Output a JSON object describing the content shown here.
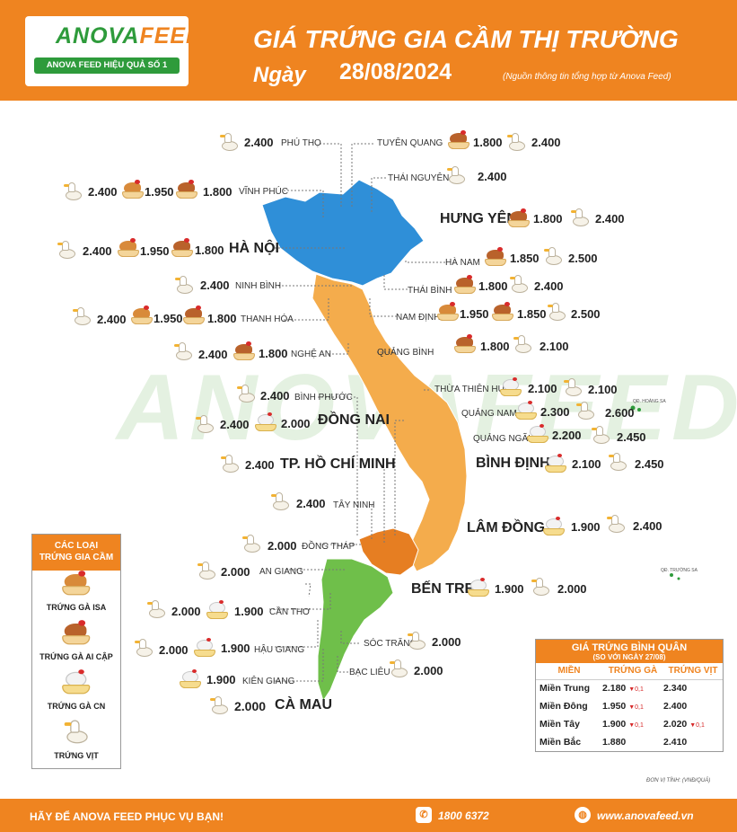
{
  "brand": {
    "logo_text_a": "ANOVA",
    "logo_text_b": "FEED",
    "logo_feed_small": "FEED",
    "ribbon": "ANOVA FEED HIỆU QUẢ SỐ 1"
  },
  "header": {
    "title": "GIÁ TRỨNG GIA CẦM THỊ TRƯỜNG",
    "date_label": "Ngày",
    "date": "28/08/2024",
    "source": "(Nguồn thông tin tổng hợp từ Anova Feed)"
  },
  "watermark": "ANOVAFEED",
  "islands": {
    "hoang_sa": "QĐ. HOÀNG SA",
    "truong_sa": "QĐ. TRƯỜNG SA"
  },
  "provinces": {
    "phu_tho": {
      "name": "PHÚ THỌ",
      "vit": "2.400"
    },
    "tuyen_quang": {
      "name": "TUYÊN QUANG",
      "ai_cap": "1.800",
      "vit": "2.400"
    },
    "thai_nguyen": {
      "name": "THÁI NGUYÊN",
      "vit": "2.400"
    },
    "vinh_phuc": {
      "name": "VĨNH PHÚC",
      "vit": "2.400",
      "isa": "1.950",
      "ai_cap": "1.800"
    },
    "hung_yen": {
      "name": "HƯNG YÊN",
      "ai_cap": "1.800",
      "vit": "2.400"
    },
    "ha_noi": {
      "name": "HÀ NỘI",
      "vit": "2.400",
      "isa": "1.950",
      "ai_cap": "1.800"
    },
    "ha_nam": {
      "name": "HÀ NAM",
      "ai_cap": "1.850",
      "vit": "2.500"
    },
    "ninh_binh": {
      "name": "NINH BÌNH",
      "vit": "2.400"
    },
    "thai_binh": {
      "name": "THÁI BÌNH",
      "ai_cap": "1.800",
      "vit": "2.400"
    },
    "thanh_hoa": {
      "name": "THANH HÓA",
      "vit": "2.400",
      "isa": "1.950",
      "ai_cap": "1.800"
    },
    "nam_dinh": {
      "name": "NAM ĐỊNH",
      "isa": "1.950",
      "ai_cap": "1.850",
      "vit": "2.500"
    },
    "nghe_an": {
      "name": "NGHỆ AN",
      "vit": "2.400",
      "ai_cap": "1.800"
    },
    "quang_binh": {
      "name": "QUẢNG BÌNH",
      "ai_cap": "1.800",
      "vit": "2.100"
    },
    "binh_phuoc": {
      "name": "BÌNH PHƯỚC",
      "vit": "2.400"
    },
    "thua_thien_hue": {
      "name": "THỪA THIÊN HUẾ",
      "cn": "2.100",
      "vit": "2.100"
    },
    "dong_nai": {
      "name": "ĐỒNG NAI",
      "vit": "2.400",
      "cn": "2.000"
    },
    "quang_nam": {
      "name": "QUẢNG NAM",
      "cn": "2.300",
      "vit": "2.600"
    },
    "quang_ngai": {
      "name": "QUẢNG NGÃI",
      "cn": "2.200",
      "vit": "2.450"
    },
    "hcm": {
      "name": "TP. HỒ CHÍ MINH",
      "vit": "2.400"
    },
    "binh_dinh": {
      "name": "BÌNH ĐỊNH",
      "cn": "2.100",
      "vit": "2.450"
    },
    "tay_ninh": {
      "name": "TÂY NINH",
      "vit": "2.400"
    },
    "lam_dong": {
      "name": "LÂM ĐỒNG",
      "cn": "1.900",
      "vit": "2.400"
    },
    "dong_thap": {
      "name": "ĐỒNG THÁP",
      "vit": "2.000"
    },
    "an_giang": {
      "name": "AN GIANG",
      "vit": "2.000"
    },
    "ben_tre": {
      "name": "BẾN TRE",
      "cn": "1.900",
      "vit": "2.000"
    },
    "can_tho": {
      "name": "CẦN THƠ",
      "vit": "2.000",
      "cn": "1.900"
    },
    "hau_giang": {
      "name": "HẬU GIANG",
      "vit": "2.000",
      "cn": "1.900"
    },
    "soc_trang": {
      "name": "SÓC TRĂNG",
      "vit": "2.000"
    },
    "kien_giang": {
      "name": "KIÊN GIANG",
      "cn": "1.900"
    },
    "bac_lieu": {
      "name": "BẠC LIÊU",
      "vit": "2.000"
    },
    "ca_mau": {
      "name": "CÀ MAU",
      "vit": "2.000"
    }
  },
  "legend": {
    "title_1": "CÁC LOẠI",
    "title_2": "TRỨNG GIA CẦM",
    "items": [
      "TRỨNG GÀ ISA",
      "TRỨNG GÀ AI CẬP",
      "TRỨNG GÀ CN",
      "TRỨNG VỊT"
    ]
  },
  "average": {
    "title": "GIÁ TRỨNG BÌNH QUÂN",
    "subtitle_pre": "(SO VỚI NGÀY",
    "subtitle_date": "27/08",
    "subtitle_post": ")",
    "headers": [
      "MIỀN",
      "TRỨNG GÀ",
      "TRỨNG VỊT"
    ],
    "rows": [
      {
        "region": "Miền Trung",
        "ga": "2.180",
        "ga_delta": "▼0,1",
        "vit": "2.340",
        "vit_delta": ""
      },
      {
        "region": "Miền Đông",
        "ga": "1.950",
        "ga_delta": "▼0,1",
        "vit": "2.400",
        "vit_delta": ""
      },
      {
        "region": "Miền Tây",
        "ga": "1.900",
        "ga_delta": "▼0,1",
        "vit": "2.020",
        "vit_delta": "▼0,1"
      },
      {
        "region": "Miền Bắc",
        "ga": "1.880",
        "ga_delta": "",
        "vit": "2.410",
        "vit_delta": ""
      }
    ],
    "unit": "ĐƠN VỊ TÍNH: (VNĐ/QUẢ)"
  },
  "footer": {
    "slogan": "HÃY ĐỂ ANOVA FEED PHỤC VỤ BẠN!",
    "phone": "1800 6372",
    "website": "www.anovafeed.vn"
  },
  "colors": {
    "orange": "#ef8420",
    "north": "#2f8fd8",
    "central": "#f4ac4c",
    "southeast": "#e67e22",
    "southwest": "#6fbf4a"
  }
}
